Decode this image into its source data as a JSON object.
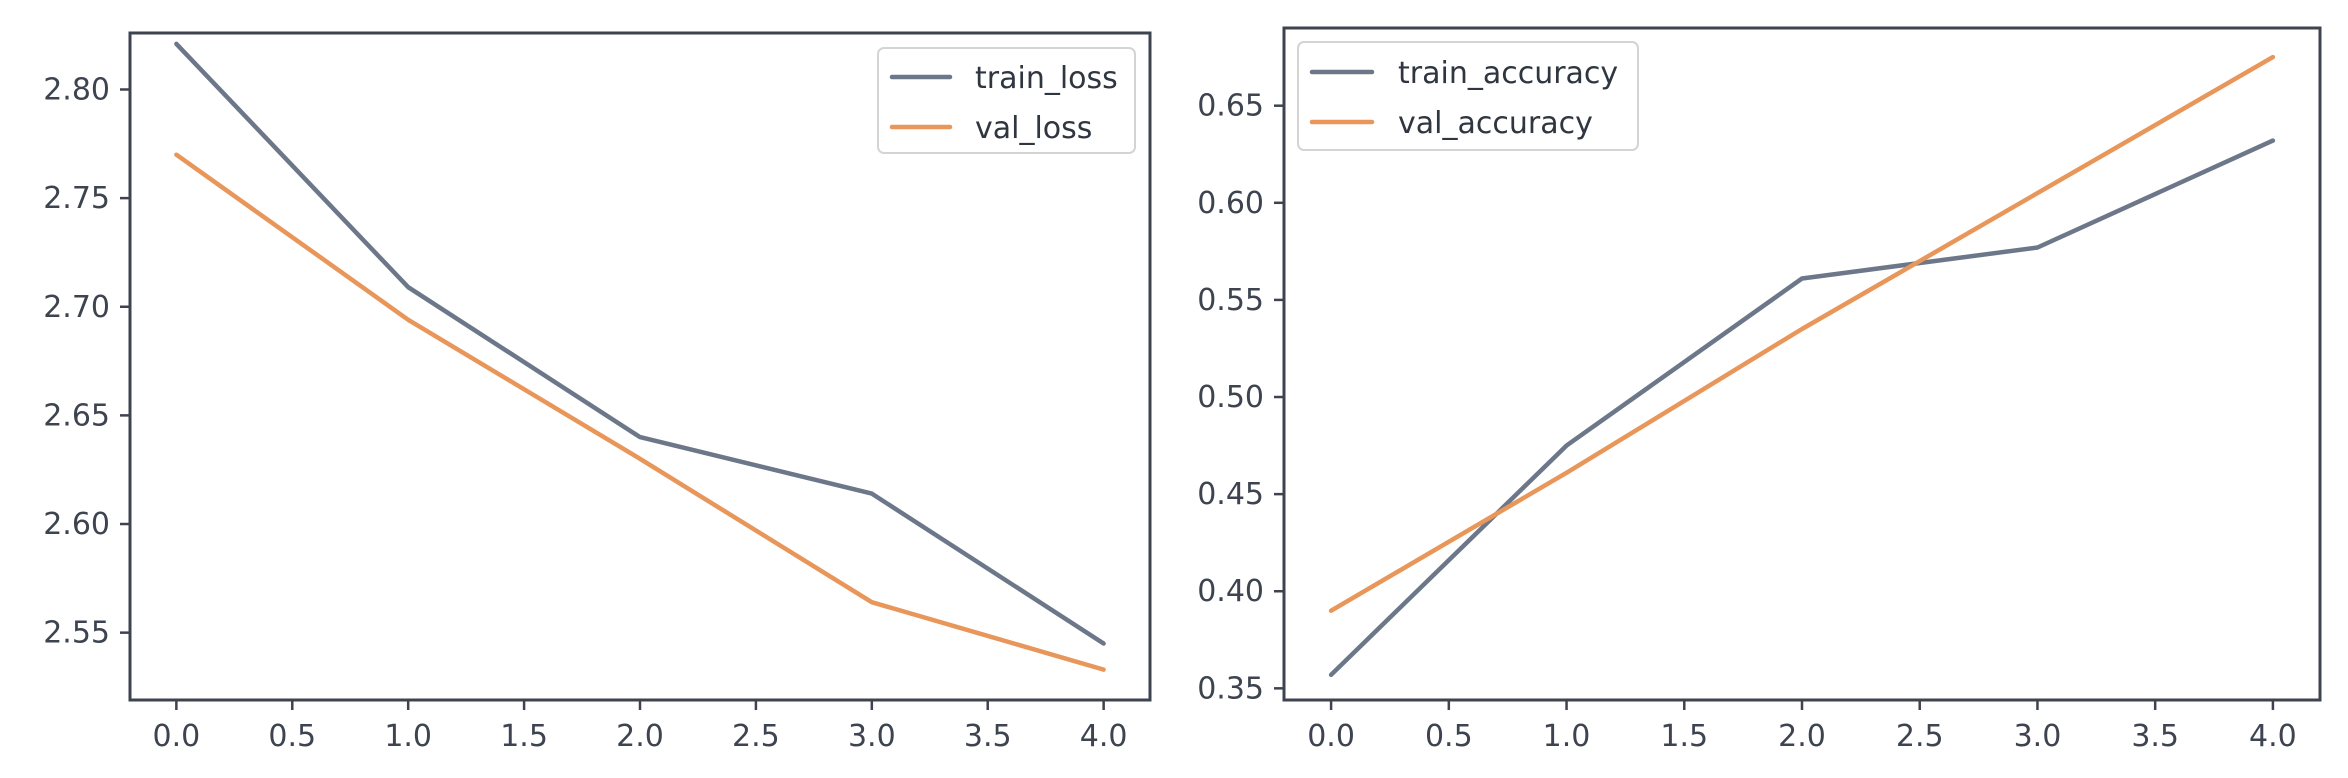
{
  "colors": {
    "train": "#6c7789",
    "val": "#e8965a"
  },
  "chart_data": [
    {
      "type": "line",
      "title": "",
      "xlabel": "",
      "ylabel": "",
      "xlim": [
        -0.2,
        4.2
      ],
      "ylim": [
        2.519,
        2.826
      ],
      "xticks": [
        0.0,
        0.5,
        1.0,
        1.5,
        2.0,
        2.5,
        3.0,
        3.5,
        4.0
      ],
      "xtick_labels": [
        "0.0",
        "0.5",
        "1.0",
        "1.5",
        "2.0",
        "2.5",
        "3.0",
        "3.5",
        "4.0"
      ],
      "yticks": [
        2.55,
        2.6,
        2.65,
        2.7,
        2.75,
        2.8
      ],
      "ytick_labels": [
        "2.55",
        "2.60",
        "2.65",
        "2.70",
        "2.75",
        "2.80"
      ],
      "x": [
        0,
        1,
        2,
        3,
        4
      ],
      "legend_position": "top-right",
      "series": [
        {
          "name": "train_loss",
          "values": [
            2.821,
            2.709,
            2.64,
            2.614,
            2.545
          ],
          "color": "#6c7789"
        },
        {
          "name": "val_loss",
          "values": [
            2.77,
            2.694,
            2.63,
            2.564,
            2.533
          ],
          "color": "#e8965a"
        }
      ]
    },
    {
      "type": "line",
      "title": "",
      "xlabel": "",
      "ylabel": "",
      "xlim": [
        -0.2,
        4.2
      ],
      "ylim": [
        0.344,
        0.69
      ],
      "xticks": [
        0.0,
        0.5,
        1.0,
        1.5,
        2.0,
        2.5,
        3.0,
        3.5,
        4.0
      ],
      "xtick_labels": [
        "0.0",
        "0.5",
        "1.0",
        "1.5",
        "2.0",
        "2.5",
        "3.0",
        "3.5",
        "4.0"
      ],
      "yticks": [
        0.35,
        0.4,
        0.45,
        0.5,
        0.55,
        0.6,
        0.65
      ],
      "ytick_labels": [
        "0.35",
        "0.40",
        "0.45",
        "0.50",
        "0.55",
        "0.60",
        "0.65"
      ],
      "x": [
        0,
        1,
        2,
        3,
        4
      ],
      "legend_position": "top-left",
      "series": [
        {
          "name": "train_accuracy",
          "values": [
            0.357,
            0.475,
            0.561,
            0.577,
            0.632
          ],
          "color": "#6c7789"
        },
        {
          "name": "val_accuracy",
          "values": [
            0.39,
            0.461,
            0.535,
            0.605,
            0.675
          ],
          "color": "#e8965a"
        }
      ]
    }
  ]
}
